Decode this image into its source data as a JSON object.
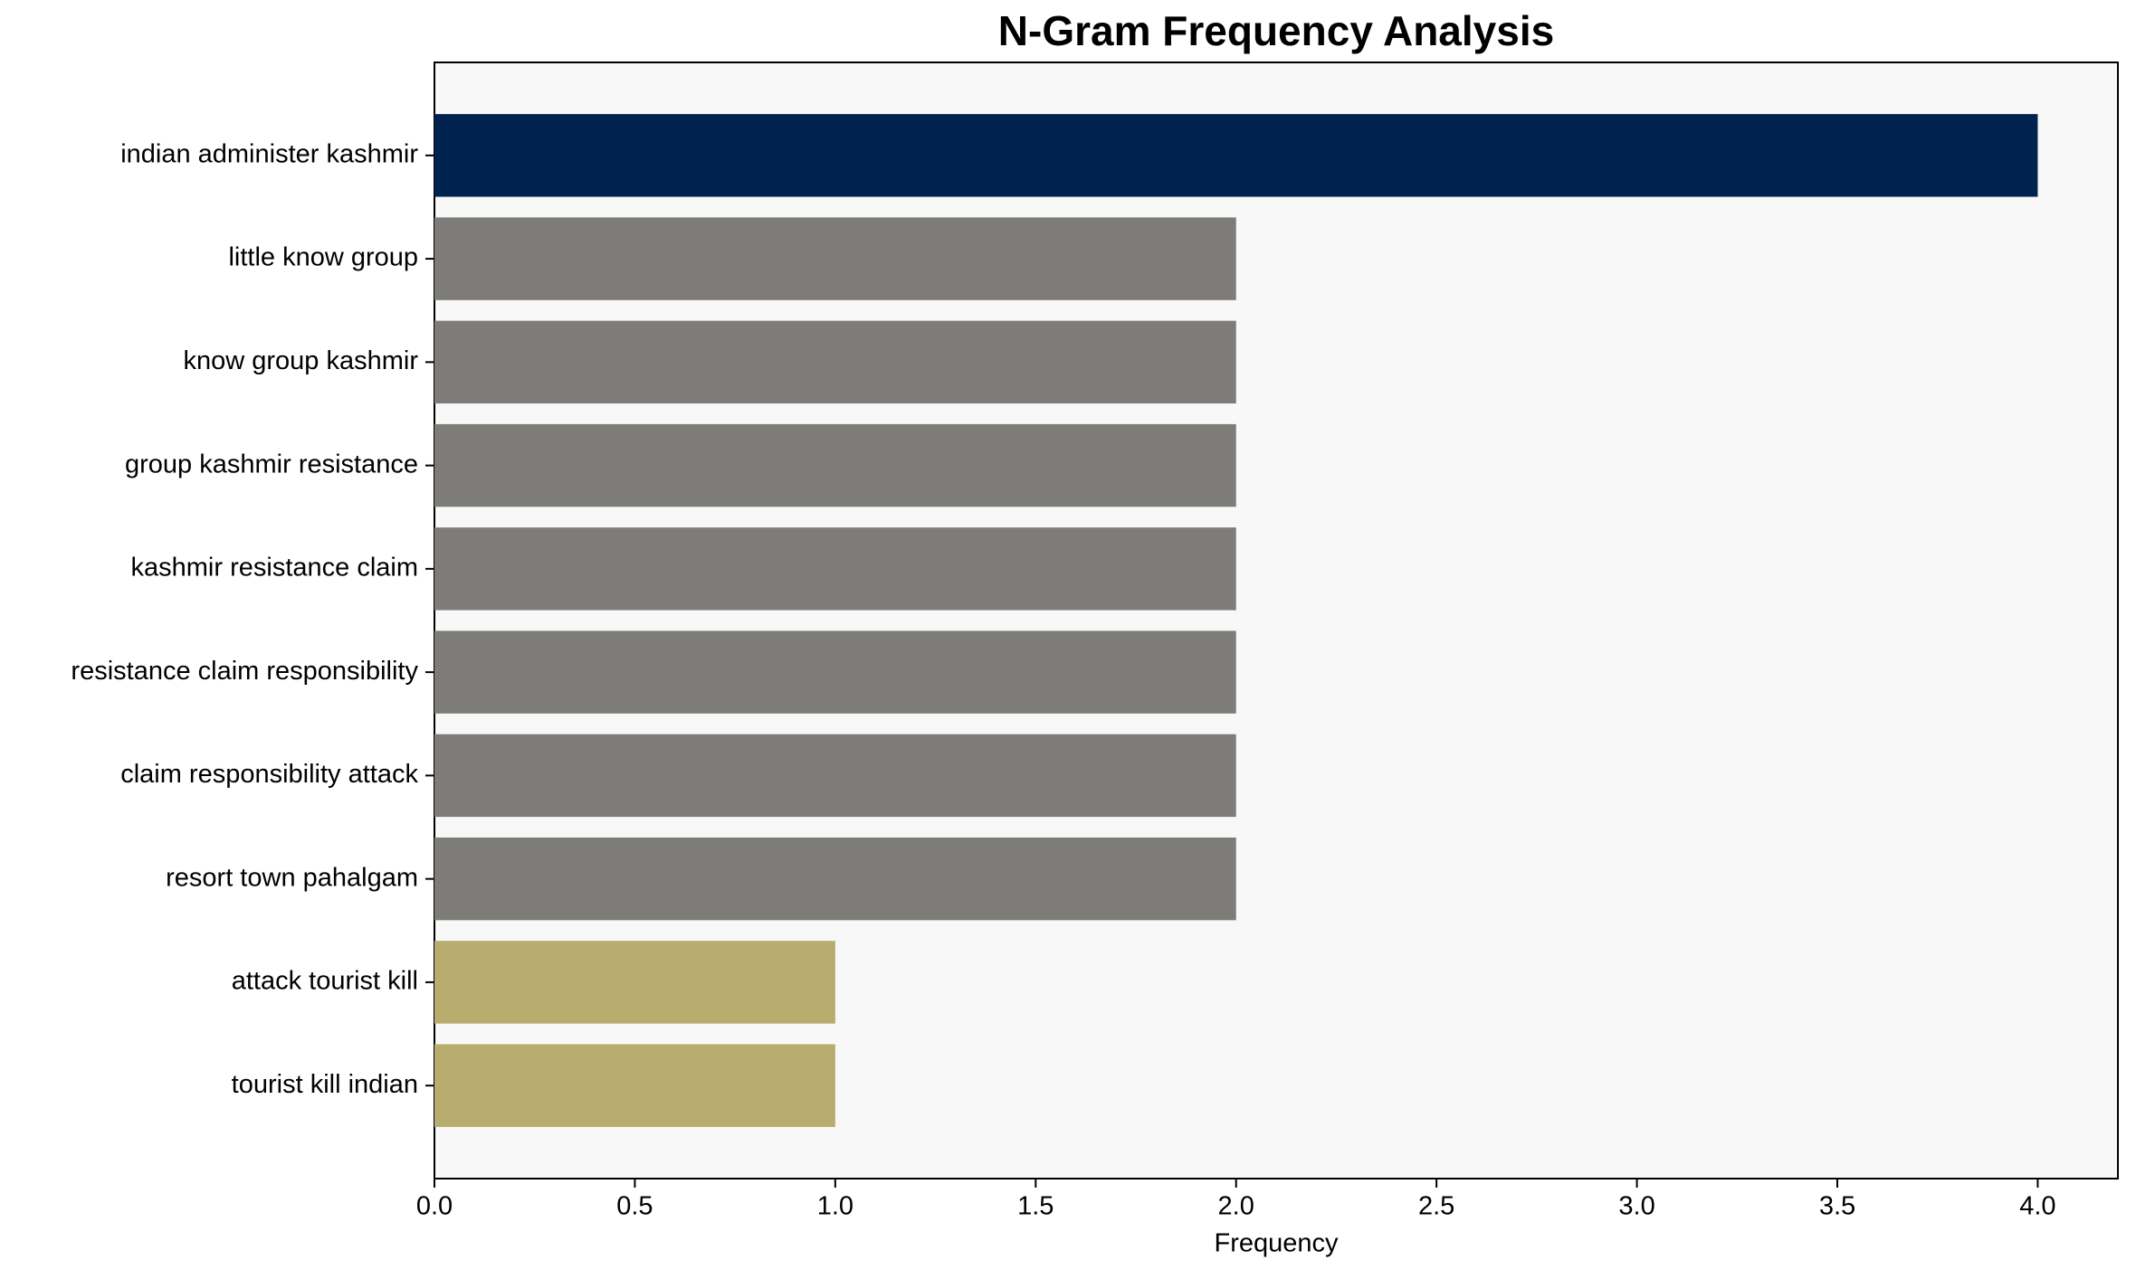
{
  "chart_data": {
    "type": "barh",
    "title": "N-Gram Frequency Analysis",
    "xlabel": "Frequency",
    "categories": [
      "indian administer kashmir",
      "little know group",
      "know group kashmir",
      "group kashmir resistance",
      "kashmir resistance claim",
      "resistance claim responsibility",
      "claim responsibility attack",
      "resort town pahalgam",
      "attack tourist kill",
      "tourist kill indian"
    ],
    "values": [
      4,
      2,
      2,
      2,
      2,
      2,
      2,
      2,
      1,
      1
    ],
    "colors": [
      "#00224e",
      "#7d7c78",
      "#7d7c78",
      "#7d7c78",
      "#7d7c78",
      "#7d7c78",
      "#7d7c78",
      "#7d7c78",
      "#b8ac6f",
      "#b8ac6f"
    ],
    "xlim": [
      0,
      4.2
    ],
    "xticks": [
      {
        "value": 0,
        "label": "0.0"
      },
      0.5,
      {
        "value": 1,
        "label": "1.0"
      },
      1.5,
      {
        "value": 2,
        "label": "2.0"
      },
      2.5,
      {
        "value": 3,
        "label": "3.0"
      },
      3.5,
      {
        "value": 4,
        "label": "4.0"
      }
    ]
  }
}
